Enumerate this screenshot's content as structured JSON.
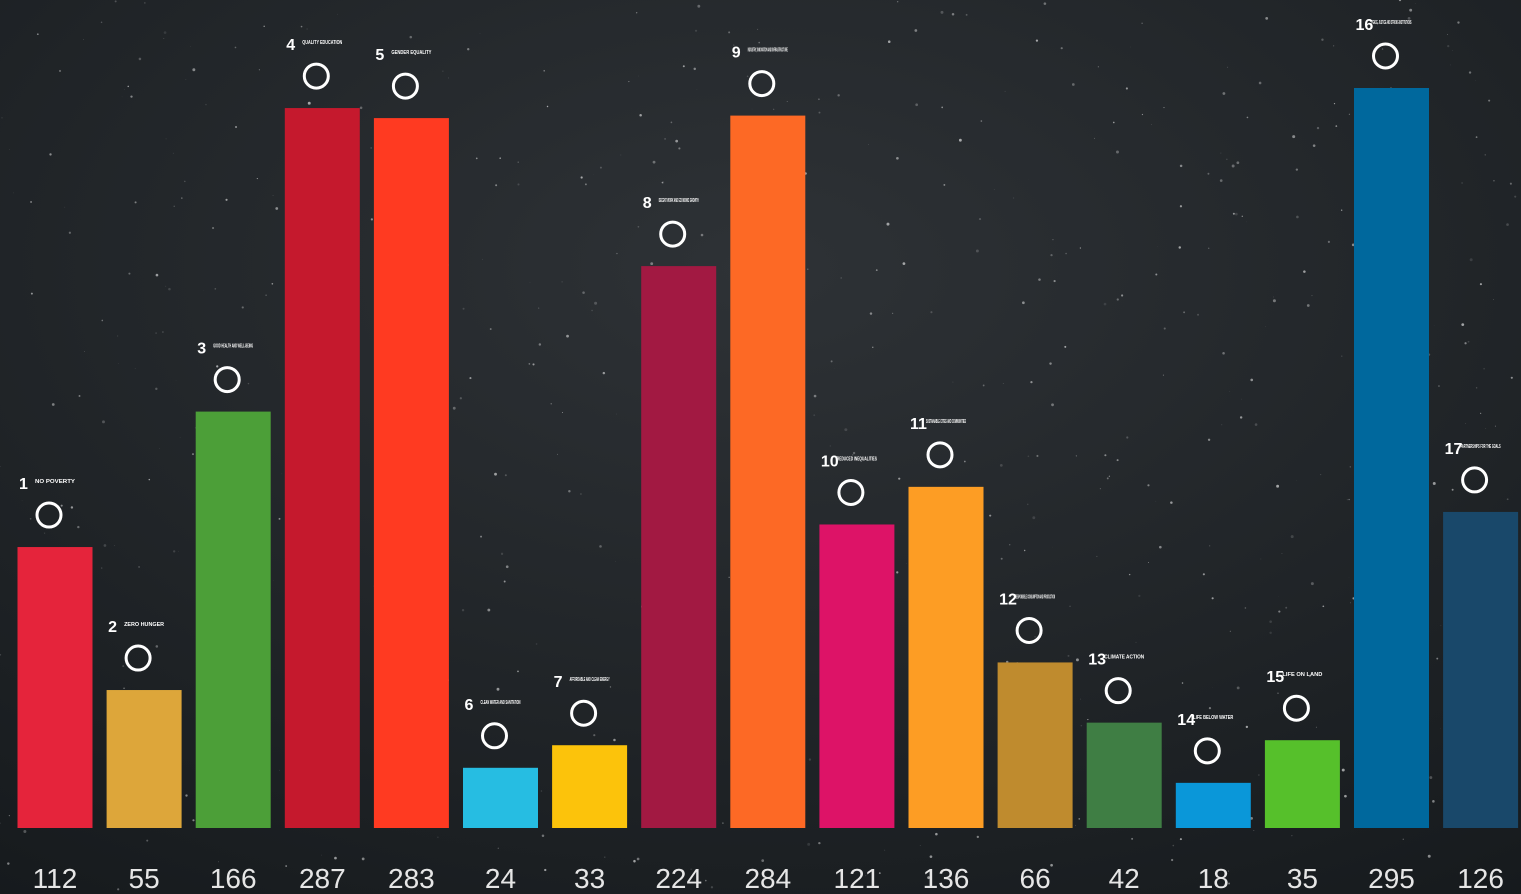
{
  "chart_data": {
    "type": "bar",
    "categories": [
      "1",
      "2",
      "3",
      "4",
      "5",
      "6",
      "7",
      "8",
      "9",
      "10",
      "11",
      "12",
      "13",
      "14",
      "15",
      "16",
      "17"
    ],
    "names": [
      "NO POVERTY",
      "ZERO HUNGER",
      "GOOD HEALTH AND WELL-BEING",
      "QUALITY EDUCATION",
      "GENDER EQUALITY",
      "CLEAN WATER AND SANITATION",
      "AFFORDABLE AND CLEAN ENERGY",
      "DECENT WORK AND ECONOMIC GROWTH",
      "INDUSTRY, INNOVATION AND INFRASTRUCTURE",
      "REDUCED INEQUALITIES",
      "SUSTAINABLE CITIES AND COMMUNITIES",
      "RESPONSIBLE CONSUMPTION AND PRODUCTION",
      "CLIMATE ACTION",
      "LIFE BELOW WATER",
      "LIFE ON LAND",
      "PEACE, JUSTICE AND STRONG INSTITUTIONS",
      "PARTNERSHIPS FOR THE GOALS"
    ],
    "values": [
      112,
      55,
      166,
      287,
      283,
      24,
      33,
      224,
      284,
      121,
      136,
      66,
      42,
      18,
      35,
      295,
      126
    ],
    "colors": [
      "#e5243b",
      "#dda63a",
      "#4c9f38",
      "#c5192d",
      "#ff3a21",
      "#26bde2",
      "#fcc30b",
      "#a21942",
      "#fd6925",
      "#dd1367",
      "#fd9d24",
      "#bf8b2e",
      "#3f7e44",
      "#0a97d9",
      "#56c02b",
      "#00689d",
      "#19486a"
    ]
  }
}
